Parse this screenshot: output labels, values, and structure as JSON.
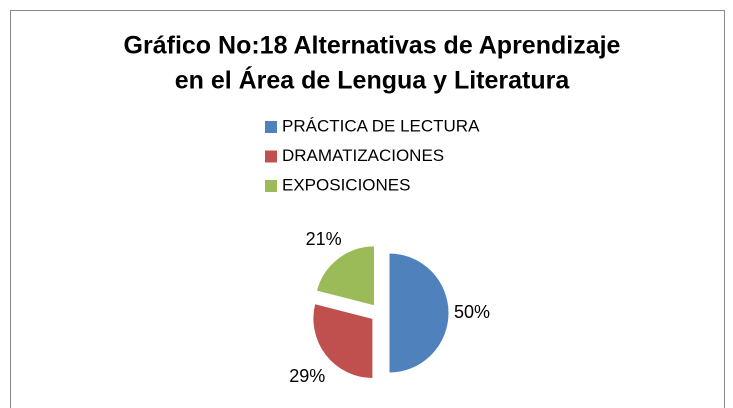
{
  "chart_data": {
    "type": "pie",
    "title": [
      "Gráfico No:18 Alternativas de Aprendizaje",
      "en el Área de Lengua y Literatura"
    ],
    "categories": [
      "PRÁCTICA DE LECTURA",
      "DRAMATIZACIONES",
      "EXPOSICIONES"
    ],
    "values": [
      50,
      29,
      21
    ],
    "value_labels": [
      "50%",
      "29%",
      "21%"
    ],
    "colors": [
      "#4f81bd",
      "#c0504d",
      "#9bbb59"
    ],
    "legend": "top"
  }
}
